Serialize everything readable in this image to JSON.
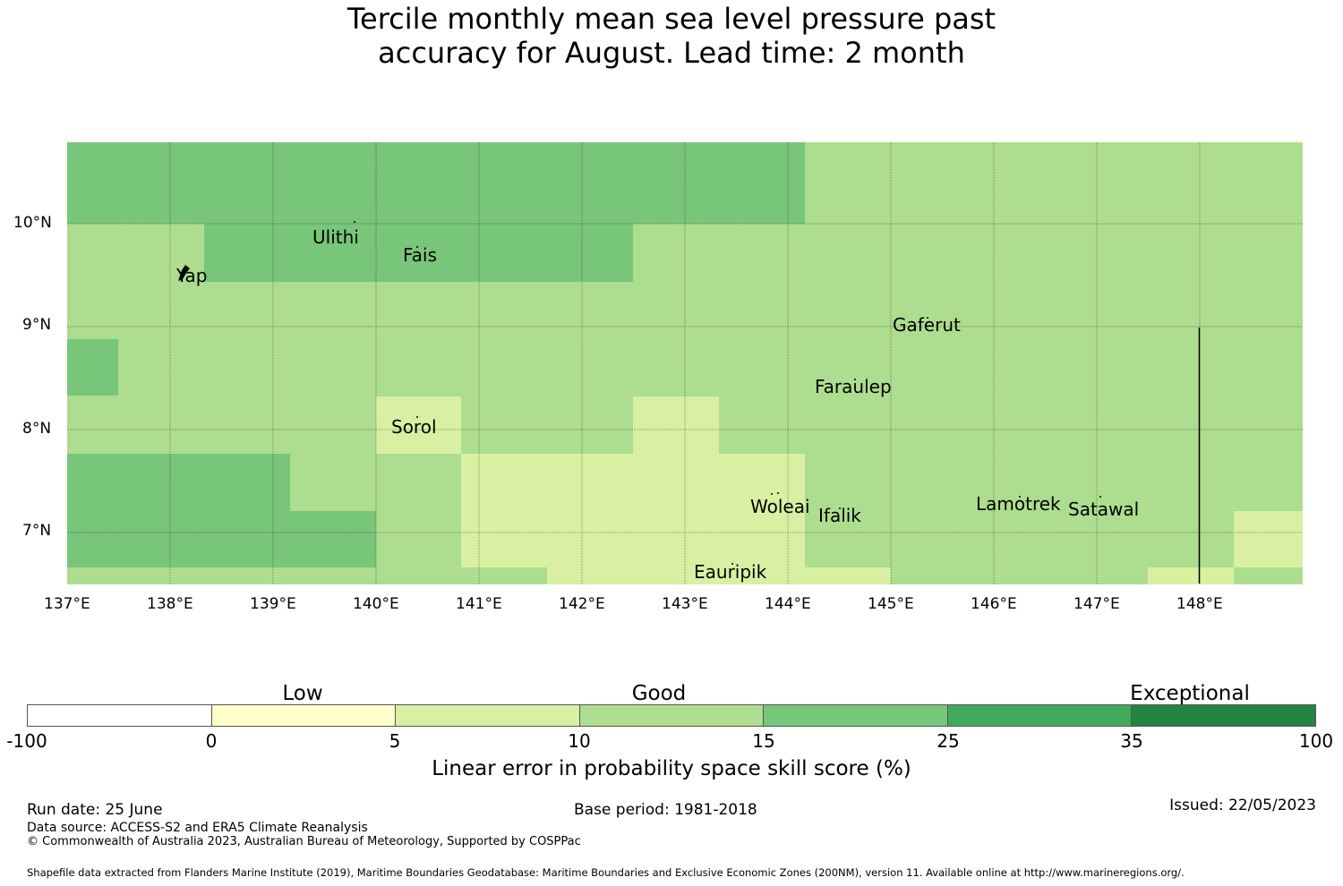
{
  "title_line1": "Tercile monthly mean sea level pressure past",
  "title_line2": "accuracy for August. Lead time: 2 month",
  "map": {
    "lat_ticks": [
      "10°N",
      "9°N",
      "8°N",
      "7°N"
    ],
    "lon_ticks": [
      "137°E",
      "138°E",
      "139°E",
      "140°E",
      "141°E",
      "142°E",
      "143°E",
      "144°E",
      "145°E",
      "146°E",
      "147°E",
      "148°E"
    ],
    "places": {
      "yap": "Yap",
      "ulithi": "Ulithi",
      "fais": "Fais",
      "gaferut": "Gaferut",
      "faraulep": "Faraulep",
      "sorol": "Sorol",
      "woleai": "Woleai",
      "ifalik": "Ifalik",
      "lamotrek": "Lamotrek",
      "satawal": "Satawal",
      "eauripik": "Eauripik"
    },
    "colors": {
      "good_10_15": "#addd8e",
      "good_15_25": "#78c679",
      "low_5_10": "#d9f0a3"
    }
  },
  "colorbar": {
    "categories": [
      "Low",
      "Good",
      "Exceptional"
    ],
    "labels": [
      "-100",
      "0",
      "5",
      "10",
      "15",
      "25",
      "35",
      "100"
    ],
    "colors": [
      "#ffffff",
      "#ffffcc",
      "#d9f0a3",
      "#addd8e",
      "#78c679",
      "#41ab5d",
      "#238443"
    ],
    "title": "Linear error in probability space skill score (%)"
  },
  "footer": {
    "run_date": "Run date: 25 June",
    "base_period": "Base period: 1981-2018",
    "issued": "Issued: 22/05/2023",
    "data_source": "Data source: ACCESS-S2 and ERA5 Climate Reanalysis",
    "copyright": "© Commonwealth of Australia 2023, Australian Bureau of Meteorology, Supported by COSPPac",
    "shapefile": "Shapefile data extracted from Flanders Marine Institute (2019), Maritime Boundaries Geodatabase: Maritime Boundaries and Exclusive Economic Zones (200NM), version 11. Available online at http://www.marineregions.org/."
  }
}
